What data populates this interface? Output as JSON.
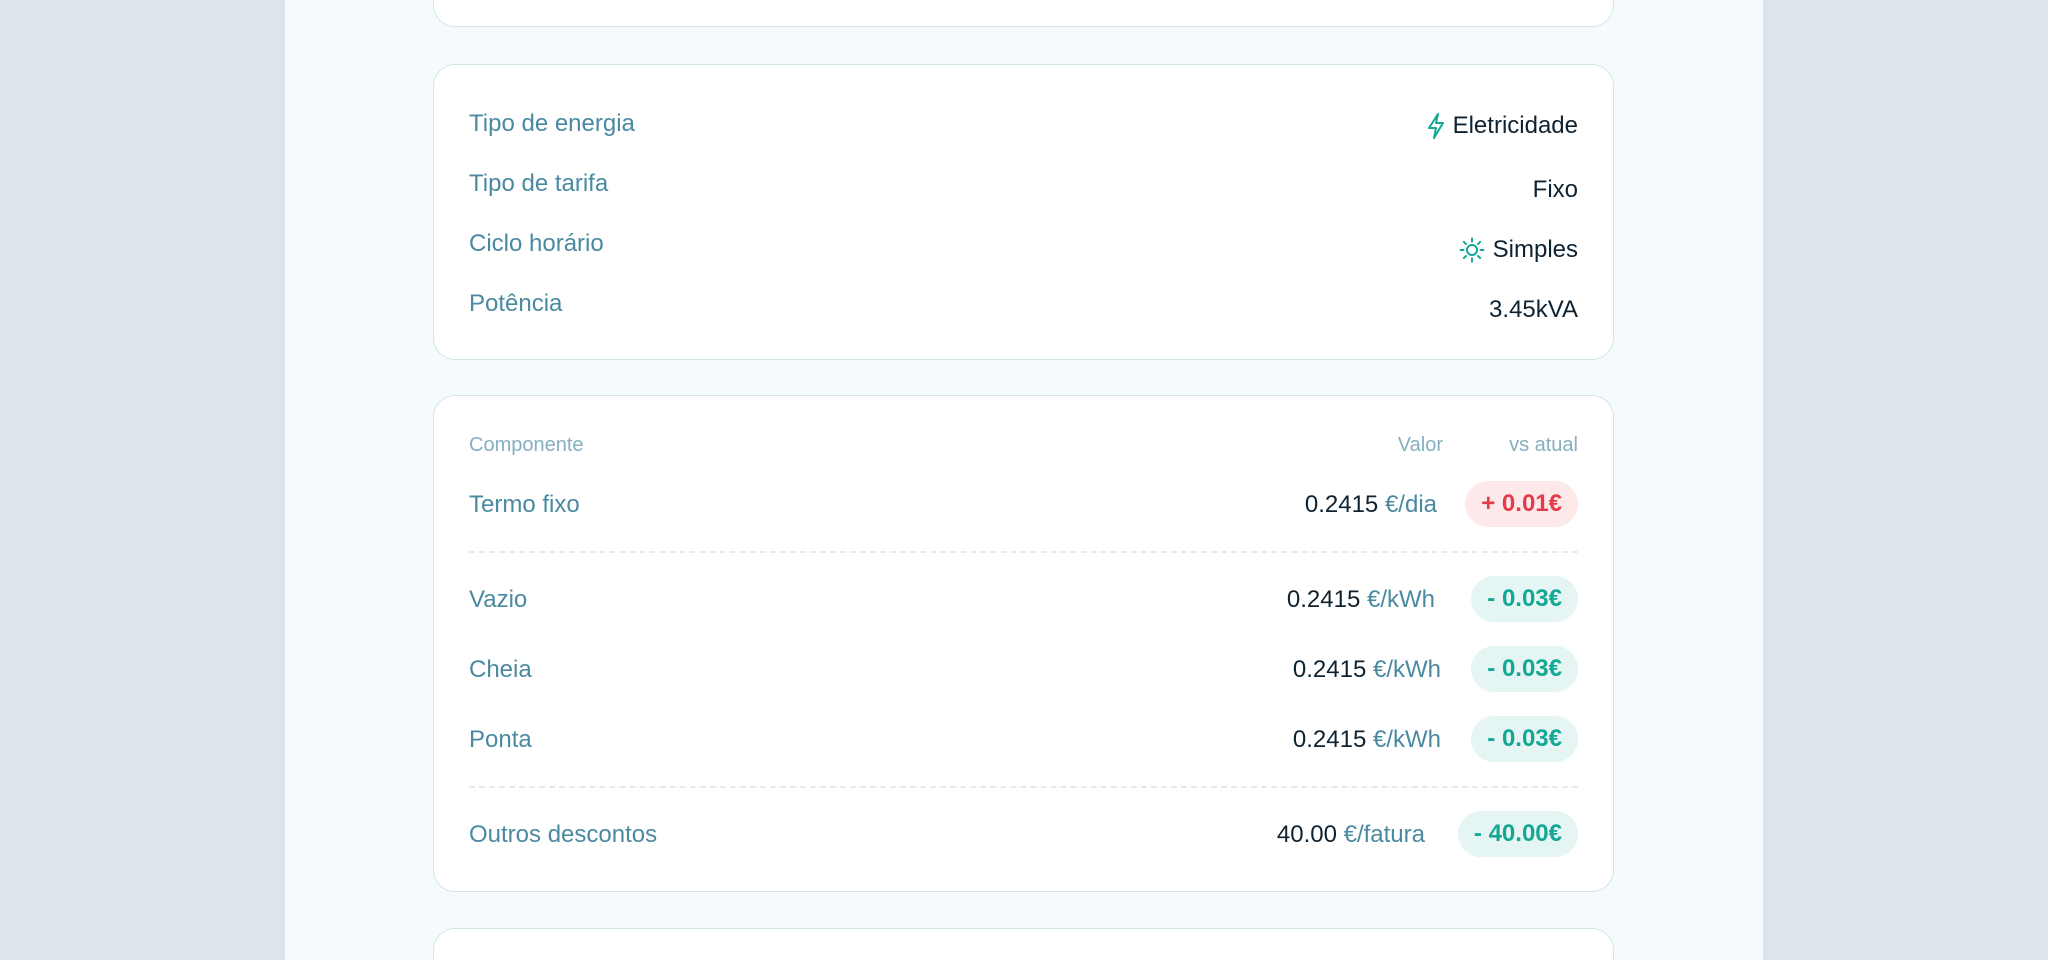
{
  "details": {
    "rows": [
      {
        "label": "Tipo de energia",
        "value": "Eletricidade",
        "icon": "bolt-icon"
      },
      {
        "label": "Tipo de tarifa",
        "value": "Fixo"
      },
      {
        "label": "Ciclo horário",
        "value": "Simples",
        "icon": "sun-icon"
      },
      {
        "label": "Potência",
        "value": "3.45kVA"
      }
    ]
  },
  "pricing": {
    "headers": {
      "component": "Componente",
      "value": "Valor",
      "vs": "vs atual"
    },
    "rows": [
      {
        "label": "Termo fixo",
        "value": "0.2415",
        "unit": "€/dia",
        "diff": "+ 0.01€",
        "direction": "up"
      },
      {
        "label": "Vazio",
        "value": "0.2415",
        "unit": "€/kWh",
        "diff": "- 0.03€",
        "direction": "down"
      },
      {
        "label": "Cheia",
        "value": "0.2415",
        "unit": "€/kWh",
        "diff": "- 0.03€",
        "direction": "down"
      },
      {
        "label": "Ponta",
        "value": "0.2415",
        "unit": "€/kWh",
        "diff": "- 0.03€",
        "direction": "down"
      },
      {
        "label": "Outros descontos",
        "value": "40.00",
        "unit": "€/fatura",
        "diff": "- 40.00€",
        "direction": "down"
      }
    ]
  },
  "colors": {
    "accent": "#14a894",
    "negative": "#e33b4a",
    "label": "#4a8aa0",
    "text": "#0f2230"
  }
}
